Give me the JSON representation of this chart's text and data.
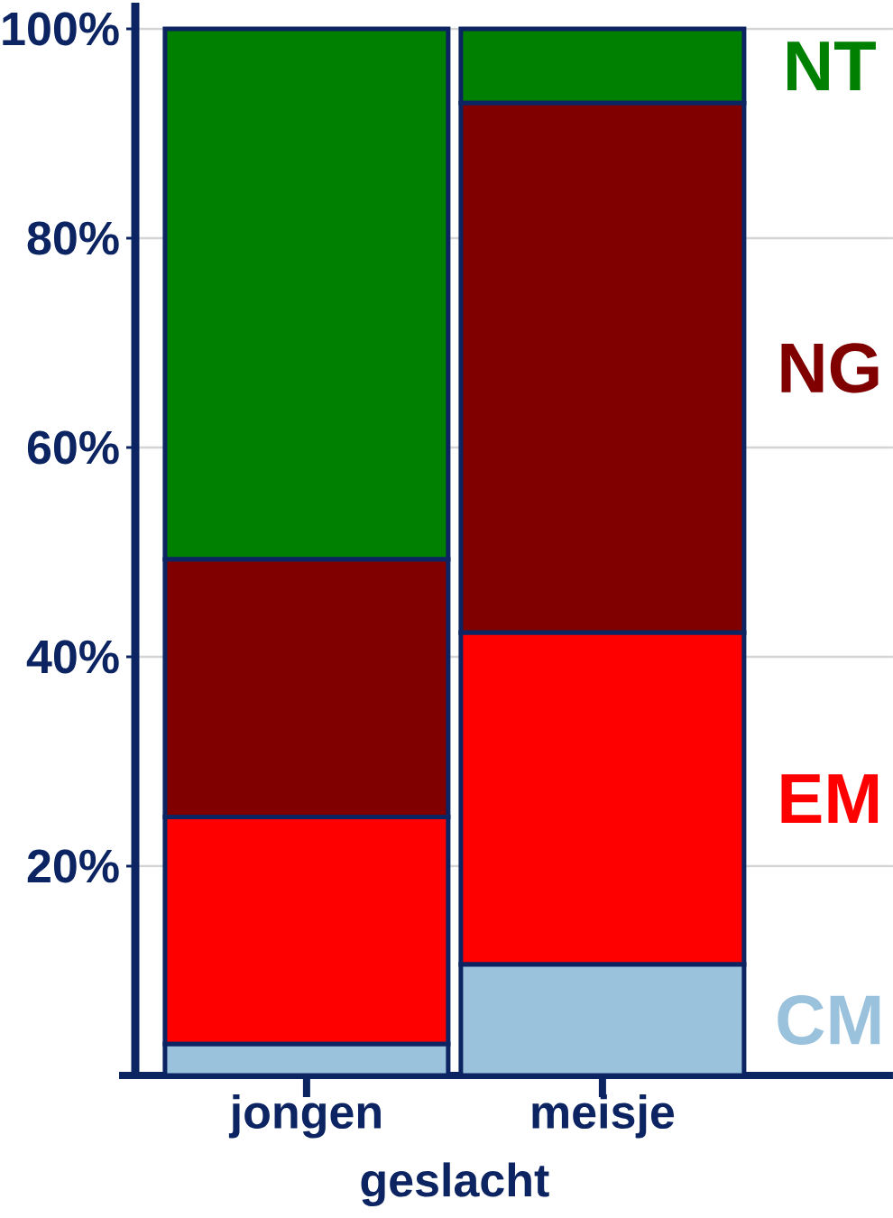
{
  "chart_data": {
    "type": "bar",
    "stacked": true,
    "xlabel": "geslacht",
    "categories": [
      "jongen",
      "meisje"
    ],
    "series": [
      {
        "name": "CM",
        "color": "#9bc2dc",
        "values": [
          3,
          10.6
        ]
      },
      {
        "name": "EM",
        "color": "#ff0000",
        "values": [
          21.7,
          31.7
        ]
      },
      {
        "name": "NG",
        "color": "#800000",
        "values": [
          24.6,
          50.6
        ]
      },
      {
        "name": "NT",
        "color": "#008000",
        "values": [
          50.7,
          7.1
        ]
      }
    ],
    "ylim": [
      0,
      102.5
    ],
    "yticks": [
      {
        "value": 20,
        "label": "20%"
      },
      {
        "value": 40,
        "label": "40%"
      },
      {
        "value": 60,
        "label": "60%"
      },
      {
        "value": 80,
        "label": "80%"
      },
      {
        "value": 100,
        "label": "100%"
      }
    ],
    "grid": "y"
  }
}
